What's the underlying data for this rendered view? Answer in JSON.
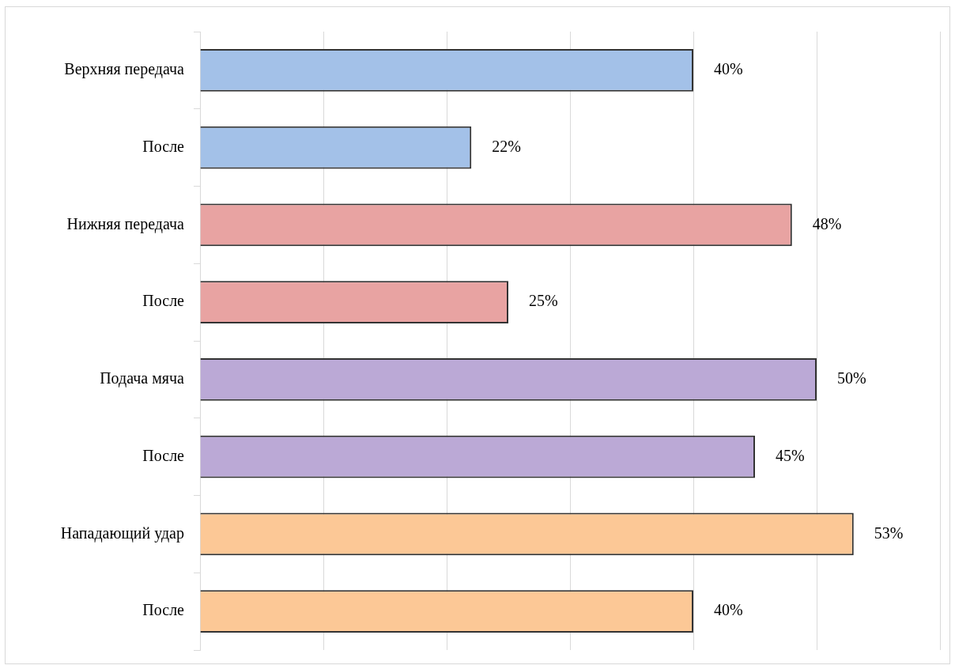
{
  "chart_data": {
    "type": "bar",
    "orientation": "horizontal",
    "categories": [
      "Верхняя передача",
      "После",
      "Нижняя передача",
      "После",
      "Подача мяча",
      "После",
      "Нападающий удар",
      "После"
    ],
    "values": [
      40,
      22,
      48,
      25,
      50,
      45,
      53,
      40
    ],
    "colors": [
      "#a3c1e8",
      "#a3c1e8",
      "#e8a3a2",
      "#e8a3a2",
      "#bba9d6",
      "#bba9d6",
      "#fcc896",
      "#fcc896"
    ],
    "value_labels": [
      "40%",
      "22%",
      "48%",
      "25%",
      "50%",
      "45%",
      "53%",
      "40%"
    ],
    "xlim": [
      0,
      60
    ],
    "xticks": [
      {
        "value": 0,
        "label": null
      },
      {
        "value": 10,
        "label": null
      },
      {
        "value": 20,
        "label": null
      },
      {
        "value": 30,
        "label": null
      },
      {
        "value": 40,
        "label": null
      },
      {
        "value": 50,
        "label": null
      }
    ],
    "tick_labels": "y",
    "grid": "x",
    "legend": false
  }
}
